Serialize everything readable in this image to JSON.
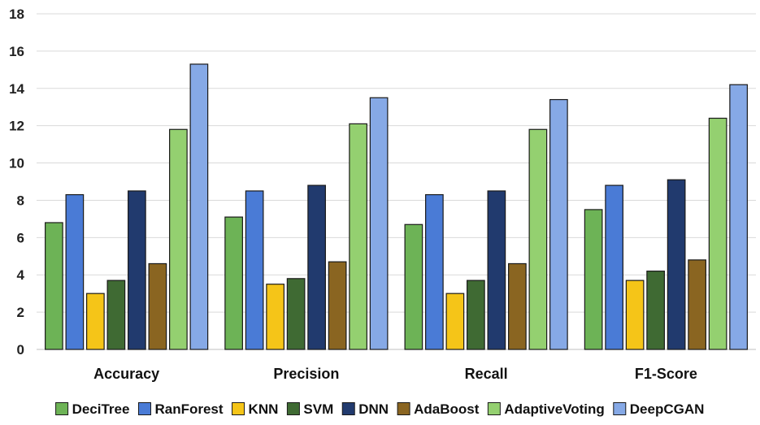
{
  "chart_data": {
    "type": "bar",
    "categories": [
      "Accuracy",
      "Precision",
      "Recall",
      "F1-Score"
    ],
    "ylim": [
      0,
      18
    ],
    "yticks": [
      0,
      2,
      4,
      6,
      8,
      10,
      12,
      14,
      16,
      18
    ],
    "grid": true,
    "legend_position": "bottom",
    "series": [
      {
        "name": "DeciTree",
        "color": "#6db356",
        "values": [
          6.8,
          7.1,
          6.7,
          7.5
        ]
      },
      {
        "name": "RanForest",
        "color": "#4a7bd6",
        "values": [
          8.3,
          8.5,
          8.3,
          8.8
        ]
      },
      {
        "name": "KNN",
        "color": "#f5c518",
        "values": [
          3.0,
          3.5,
          3.0,
          3.7
        ]
      },
      {
        "name": "SVM",
        "color": "#3f6a33",
        "values": [
          3.7,
          3.8,
          3.7,
          4.2
        ]
      },
      {
        "name": "DNN",
        "color": "#213a6e",
        "values": [
          8.5,
          8.8,
          8.5,
          9.1
        ]
      },
      {
        "name": "AdaBoost",
        "color": "#8a6521",
        "values": [
          4.6,
          4.7,
          4.6,
          4.8
        ]
      },
      {
        "name": "AdaptiveVoting",
        "color": "#94d070",
        "values": [
          11.8,
          12.1,
          11.8,
          12.4
        ]
      },
      {
        "name": "DeepCGAN",
        "color": "#86a9e6",
        "values": [
          15.3,
          13.5,
          13.4,
          14.2
        ]
      }
    ]
  }
}
